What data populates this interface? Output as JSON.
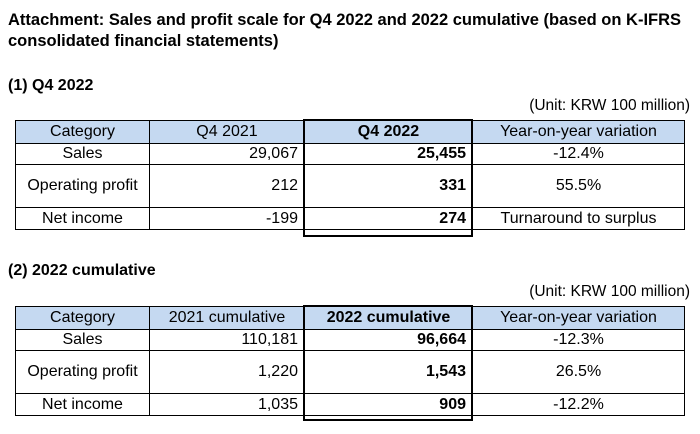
{
  "title": "Attachment: Sales and profit scale for Q4 2022 and 2022 cumulative (based on K-IFRS consolidated financial statements)",
  "sections": [
    {
      "heading": "(1) Q4 2022",
      "unit": "(Unit: KRW 100 million)",
      "headers": [
        "Category",
        "Q4 2021",
        "Q4 2022",
        "Year-on-year variation"
      ],
      "rows": [
        {
          "category": "Sales",
          "prev": "29,067",
          "curr": "25,455",
          "variation": "-12.4%"
        },
        {
          "category": "Operating profit",
          "prev": "212",
          "curr": "331",
          "variation": "55.5%"
        },
        {
          "category": "Net income",
          "prev": "-199",
          "curr": "274",
          "variation": "Turnaround to surplus"
        }
      ]
    },
    {
      "heading": "(2) 2022 cumulative",
      "unit": "(Unit: KRW 100 million)",
      "headers": [
        "Category",
        "2021 cumulative",
        "2022 cumulative",
        "Year-on-year variation"
      ],
      "rows": [
        {
          "category": "Sales",
          "prev": "110,181",
          "curr": "96,664",
          "variation": "-12.3%"
        },
        {
          "category": "Operating profit",
          "prev": "1,220",
          "curr": "1,543",
          "variation": "26.5%"
        },
        {
          "category": "Net income",
          "prev": "1,035",
          "curr": "909",
          "variation": "-12.2%"
        }
      ]
    }
  ]
}
